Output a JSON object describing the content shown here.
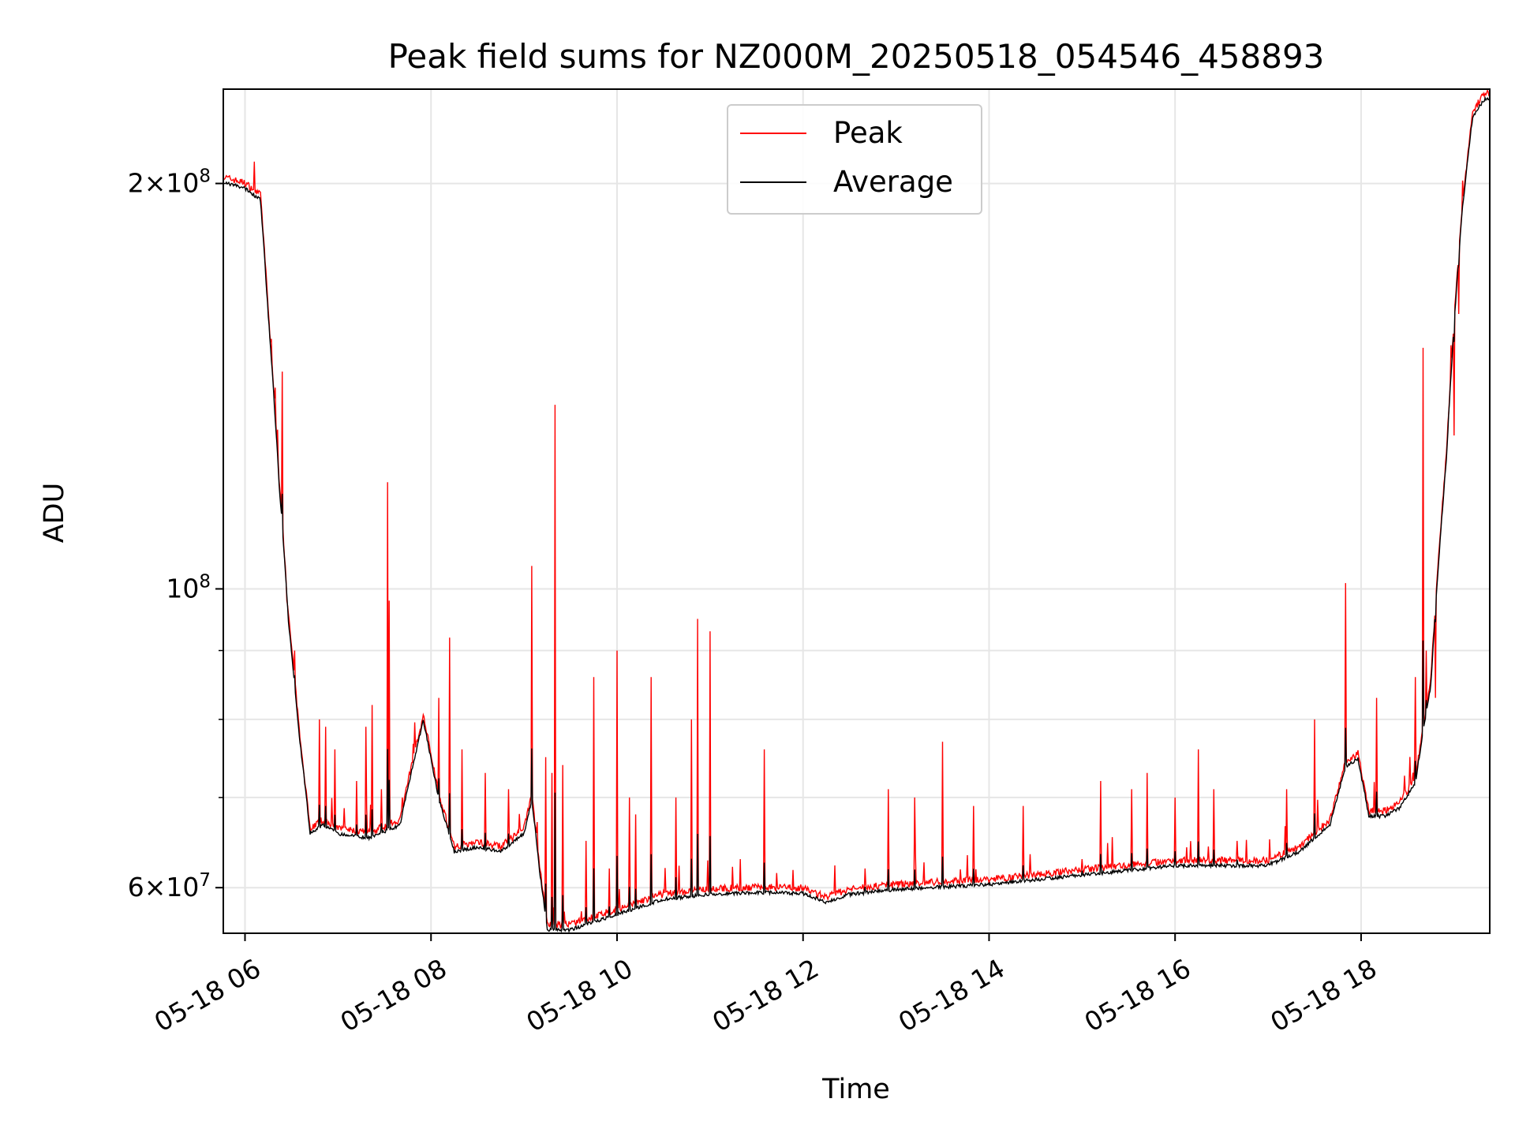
{
  "chart_data": {
    "type": "line",
    "title": "Peak field sums for NZ000M_20250518_054546_458893",
    "xlabel": "Time",
    "ylabel": "ADU",
    "y_scale": "log",
    "grid": true,
    "legend_position": "top-center",
    "x_range": [
      "05-18 05:46",
      "05-18 19:23"
    ],
    "ylim": [
      55500000,
      235000000
    ],
    "x_ticks": [
      "05-18 06",
      "05-18 08",
      "05-18 10",
      "05-18 12",
      "05-18 14",
      "05-18 16",
      "05-18 18"
    ],
    "y_ticks": [
      {
        "value": 60000000,
        "base": "6",
        "exp": "7"
      },
      {
        "value": 100000000,
        "base": "",
        "exp": "8"
      },
      {
        "value": 200000000,
        "base": "2",
        "exp": "8"
      }
    ],
    "series": [
      {
        "name": "Peak",
        "color": "#ff0000"
      },
      {
        "name": "Average",
        "color": "#000000"
      }
    ],
    "baseline": [
      [
        "05:46",
        201000000
      ],
      [
        "06:00",
        199000000
      ],
      [
        "06:10",
        195000000
      ],
      [
        "06:15",
        160000000
      ],
      [
        "06:22",
        120000000
      ],
      [
        "06:28",
        95000000
      ],
      [
        "06:35",
        78000000
      ],
      [
        "06:42",
        66000000
      ],
      [
        "06:50",
        67000000
      ],
      [
        "07:00",
        66000000
      ],
      [
        "07:20",
        65500000
      ],
      [
        "07:40",
        67000000
      ],
      [
        "07:55",
        80000000
      ],
      [
        "08:05",
        70000000
      ],
      [
        "08:15",
        64000000
      ],
      [
        "08:30",
        64500000
      ],
      [
        "08:45",
        64000000
      ],
      [
        "09:00",
        66000000
      ],
      [
        "09:05",
        70000000
      ],
      [
        "09:10",
        62000000
      ],
      [
        "09:15",
        56000000
      ],
      [
        "09:30",
        56000000
      ],
      [
        "09:50",
        57000000
      ],
      [
        "10:10",
        58000000
      ],
      [
        "10:30",
        59000000
      ],
      [
        "11:00",
        59500000
      ],
      [
        "11:30",
        59700000
      ],
      [
        "12:00",
        59600000
      ],
      [
        "12:15",
        58700000
      ],
      [
        "12:30",
        59500000
      ],
      [
        "13:00",
        60000000
      ],
      [
        "14:00",
        60500000
      ],
      [
        "15:00",
        61500000
      ],
      [
        "16:00",
        62500000
      ],
      [
        "16:30",
        62500000
      ],
      [
        "17:00",
        62500000
      ],
      [
        "17:20",
        64000000
      ],
      [
        "17:40",
        67000000
      ],
      [
        "17:50",
        74000000
      ],
      [
        "17:58",
        75000000
      ],
      [
        "18:05",
        68000000
      ],
      [
        "18:15",
        68000000
      ],
      [
        "18:25",
        69000000
      ],
      [
        "18:35",
        72000000
      ],
      [
        "18:45",
        85000000
      ],
      [
        "18:55",
        125000000
      ],
      [
        "19:05",
        190000000
      ],
      [
        "19:12",
        225000000
      ],
      [
        "19:20",
        232000000
      ],
      [
        "19:23",
        232000000
      ]
    ],
    "peak_spikes": [
      [
        "06:24",
        145000000
      ],
      [
        "06:27",
        98000000
      ],
      [
        "06:32",
        90000000
      ],
      [
        "06:48",
        80000000
      ],
      [
        "06:52",
        79000000
      ],
      [
        "06:58",
        76000000
      ],
      [
        "07:12",
        72000000
      ],
      [
        "07:18",
        79000000
      ],
      [
        "07:22",
        82000000
      ],
      [
        "07:28",
        71000000
      ],
      [
        "07:32",
        120000000
      ],
      [
        "07:33",
        98000000
      ],
      [
        "08:05",
        83000000
      ],
      [
        "08:12",
        92000000
      ],
      [
        "08:20",
        76000000
      ],
      [
        "08:35",
        73000000
      ],
      [
        "08:50",
        71000000
      ],
      [
        "09:05",
        104000000
      ],
      [
        "09:14",
        75000000
      ],
      [
        "09:18",
        73000000
      ],
      [
        "09:20",
        137000000
      ],
      [
        "09:25",
        74000000
      ],
      [
        "09:40",
        65000000
      ],
      [
        "09:45",
        86000000
      ],
      [
        "09:55",
        62000000
      ],
      [
        "10:00",
        90000000
      ],
      [
        "10:08",
        70000000
      ],
      [
        "10:12",
        68000000
      ],
      [
        "10:22",
        86000000
      ],
      [
        "10:38",
        70000000
      ],
      [
        "10:48",
        80000000
      ],
      [
        "10:52",
        95000000
      ],
      [
        "11:00",
        93000000
      ],
      [
        "11:35",
        76000000
      ],
      [
        "12:40",
        62000000
      ],
      [
        "12:55",
        71000000
      ],
      [
        "13:12",
        70000000
      ],
      [
        "13:30",
        77000000
      ],
      [
        "13:50",
        69000000
      ],
      [
        "14:22",
        69000000
      ],
      [
        "15:00",
        63000000
      ],
      [
        "15:12",
        72000000
      ],
      [
        "15:32",
        71000000
      ],
      [
        "15:42",
        73000000
      ],
      [
        "16:00",
        70000000
      ],
      [
        "16:15",
        76000000
      ],
      [
        "16:25",
        71000000
      ],
      [
        "16:40",
        65000000
      ],
      [
        "17:02",
        63000000
      ],
      [
        "17:12",
        71000000
      ],
      [
        "17:30",
        80000000
      ],
      [
        "17:50",
        101000000
      ],
      [
        "18:10",
        83000000
      ],
      [
        "18:35",
        86000000
      ],
      [
        "18:40",
        151000000
      ],
      [
        "18:42",
        90000000
      ],
      [
        "18:48",
        83000000
      ],
      [
        "19:00",
        130000000
      ],
      [
        "19:03",
        160000000
      ]
    ]
  }
}
